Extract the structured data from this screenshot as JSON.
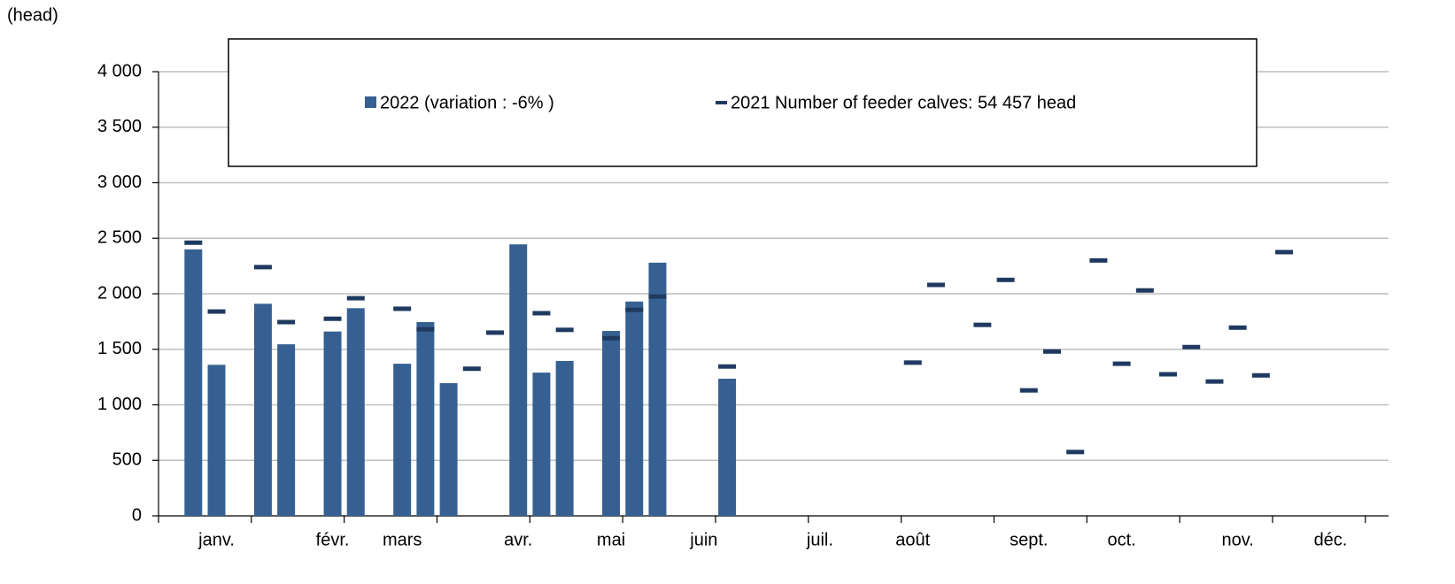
{
  "chart_data": {
    "type": "bar",
    "y_label": "(head)",
    "categories": [
      null,
      null,
      "janv.",
      null,
      null,
      null,
      null,
      "févr.",
      null,
      null,
      "mars",
      null,
      null,
      null,
      null,
      "avr.",
      null,
      null,
      null,
      "mai",
      null,
      null,
      null,
      "juin",
      null,
      null,
      null,
      null,
      "juil.",
      null,
      null,
      null,
      "août",
      null,
      null,
      null,
      null,
      "sept.",
      null,
      null,
      null,
      "oct.",
      null,
      null,
      null,
      null,
      "nov.",
      null,
      null,
      null,
      "déc.",
      null,
      null
    ],
    "series": [
      {
        "name": "2022 (variation : -6% )",
        "color": "#376092",
        "style": "bar",
        "values": [
          null,
          2400,
          1360,
          null,
          1910,
          1545,
          null,
          1660,
          1870,
          null,
          1370,
          1745,
          1195,
          null,
          null,
          2445,
          1290,
          1395,
          null,
          1665,
          1930,
          2280,
          null,
          null,
          1235,
          null,
          null,
          null,
          null,
          null,
          null,
          null,
          null,
          null,
          null,
          null,
          null,
          null,
          null,
          null,
          null,
          null,
          null,
          null,
          null,
          null,
          null,
          null,
          null,
          null,
          null,
          null,
          null
        ]
      },
      {
        "name": "2021 Number of feeder calves: 54 457 head",
        "color": "#1f3a60",
        "style": "dash",
        "values": [
          null,
          2460,
          1840,
          null,
          2240,
          1745,
          null,
          1775,
          1960,
          null,
          1865,
          1680,
          null,
          1325,
          1650,
          null,
          1825,
          1675,
          null,
          1600,
          1855,
          1975,
          null,
          null,
          1345,
          null,
          null,
          null,
          null,
          null,
          null,
          null,
          1380,
          2080,
          null,
          1720,
          2125,
          1130,
          1480,
          575,
          2300,
          1370,
          2030,
          1275,
          1520,
          1210,
          1695,
          1265,
          2375,
          null,
          null,
          null,
          null
        ]
      }
    ],
    "ylim": [
      0,
      4000
    ],
    "yticks": [
      0,
      500,
      {
        "value": 1000,
        "label": "1 000"
      },
      {
        "value": 1500,
        "label": "1 500"
      },
      {
        "value": 2000,
        "label": "2 000"
      },
      {
        "value": 2500,
        "label": "2 500"
      },
      {
        "value": 3000,
        "label": "3 000"
      },
      {
        "value": 3500,
        "label": "3 500"
      },
      {
        "value": 4000,
        "label": "4 000"
      }
    ],
    "grid": true
  }
}
